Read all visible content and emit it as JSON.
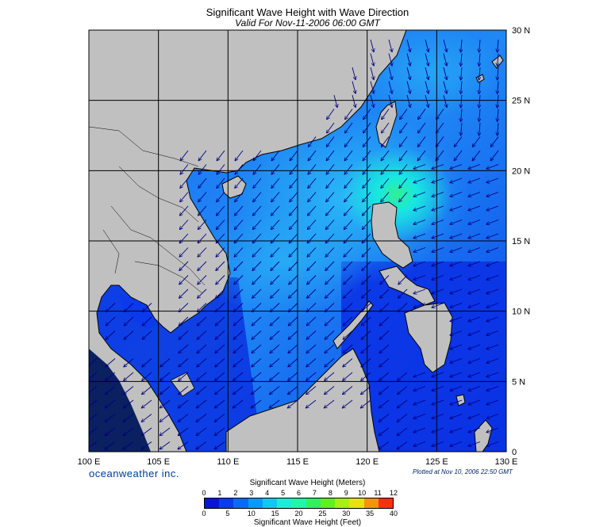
{
  "title": "Significant Wave Height with Wave Direction",
  "subtitle": "Valid For Nov-11-2006 06:00 GMT",
  "lon_labels": [
    "100 E",
    "105 E",
    "110 E",
    "115 E",
    "120 E",
    "125 E",
    "130 E"
  ],
  "lat_labels": [
    "0",
    "5 N",
    "10 N",
    "15 N",
    "20 N",
    "25 N",
    "30 N"
  ],
  "brand": "oceanweather inc.",
  "plotted": "Plotted at Nov 10, 2006 22:50 GMT",
  "legend": {
    "meters_title": "Significant Wave Height (Meters)",
    "feet_title": "Significant Wave Height (Feet)",
    "meters_ticks": [
      "0",
      "1",
      "2",
      "3",
      "4",
      "5",
      "6",
      "7",
      "8",
      "9",
      "10",
      "11",
      "12"
    ],
    "feet_ticks": [
      "0",
      "5",
      "10",
      "15",
      "20",
      "25",
      "30",
      "35",
      "40"
    ],
    "colors": [
      "#0a14d8",
      "#0a3cf0",
      "#0a6af8",
      "#0a9af8",
      "#10c8f0",
      "#1aeed8",
      "#20f8a8",
      "#30f060",
      "#60f020",
      "#a8f010",
      "#e8e010",
      "#f89010",
      "#f83010"
    ]
  },
  "colors": {
    "land": "#c0c0c0",
    "coast": "#000000",
    "grid": "#000000",
    "deep_blue": "#0a30e8",
    "mid_blue": "#1270f5",
    "light_blue": "#2fb8f5"
  }
}
